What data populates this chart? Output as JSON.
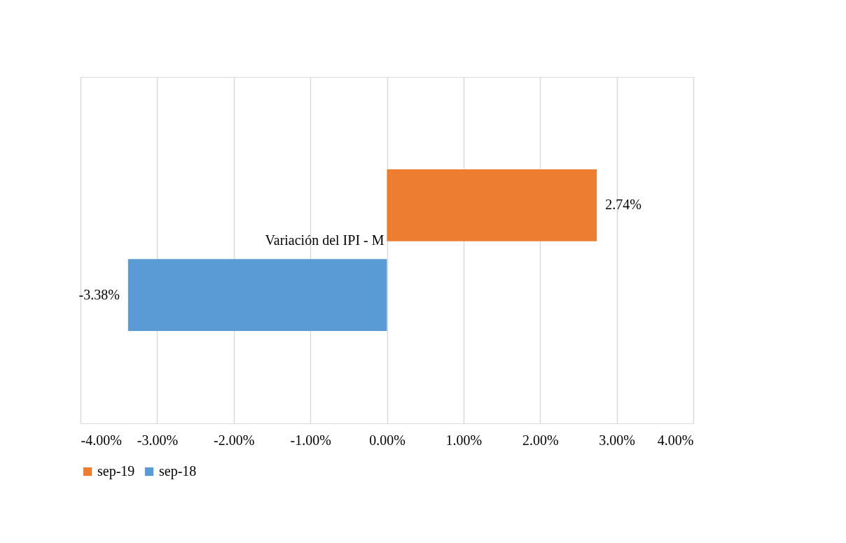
{
  "chart_data": {
    "type": "bar",
    "orientation": "horizontal",
    "categories": [
      "Variación del IPI - M"
    ],
    "series": [
      {
        "name": "sep-19",
        "color": "#ed7d31",
        "values": [
          2.74
        ],
        "value_labels": [
          "2.74%"
        ]
      },
      {
        "name": "sep-18",
        "color": "#5b9bd5",
        "values": [
          -3.38
        ],
        "value_labels": [
          "-3.38%"
        ]
      }
    ],
    "xlim": [
      -4,
      4
    ],
    "xticks": [
      {
        "value": -4,
        "label": "-4.00%"
      },
      {
        "value": -3,
        "label": "-3.00%"
      },
      {
        "value": -2,
        "label": "-2.00%"
      },
      {
        "value": -1,
        "label": "-1.00%"
      },
      {
        "value": 0,
        "label": "0.00%"
      },
      {
        "value": 1,
        "label": "1.00%"
      },
      {
        "value": 2,
        "label": "2.00%"
      },
      {
        "value": 3,
        "label": "3.00%"
      },
      {
        "value": 4,
        "label": "4.00%"
      }
    ],
    "grid": "x",
    "legend": "bottom"
  }
}
